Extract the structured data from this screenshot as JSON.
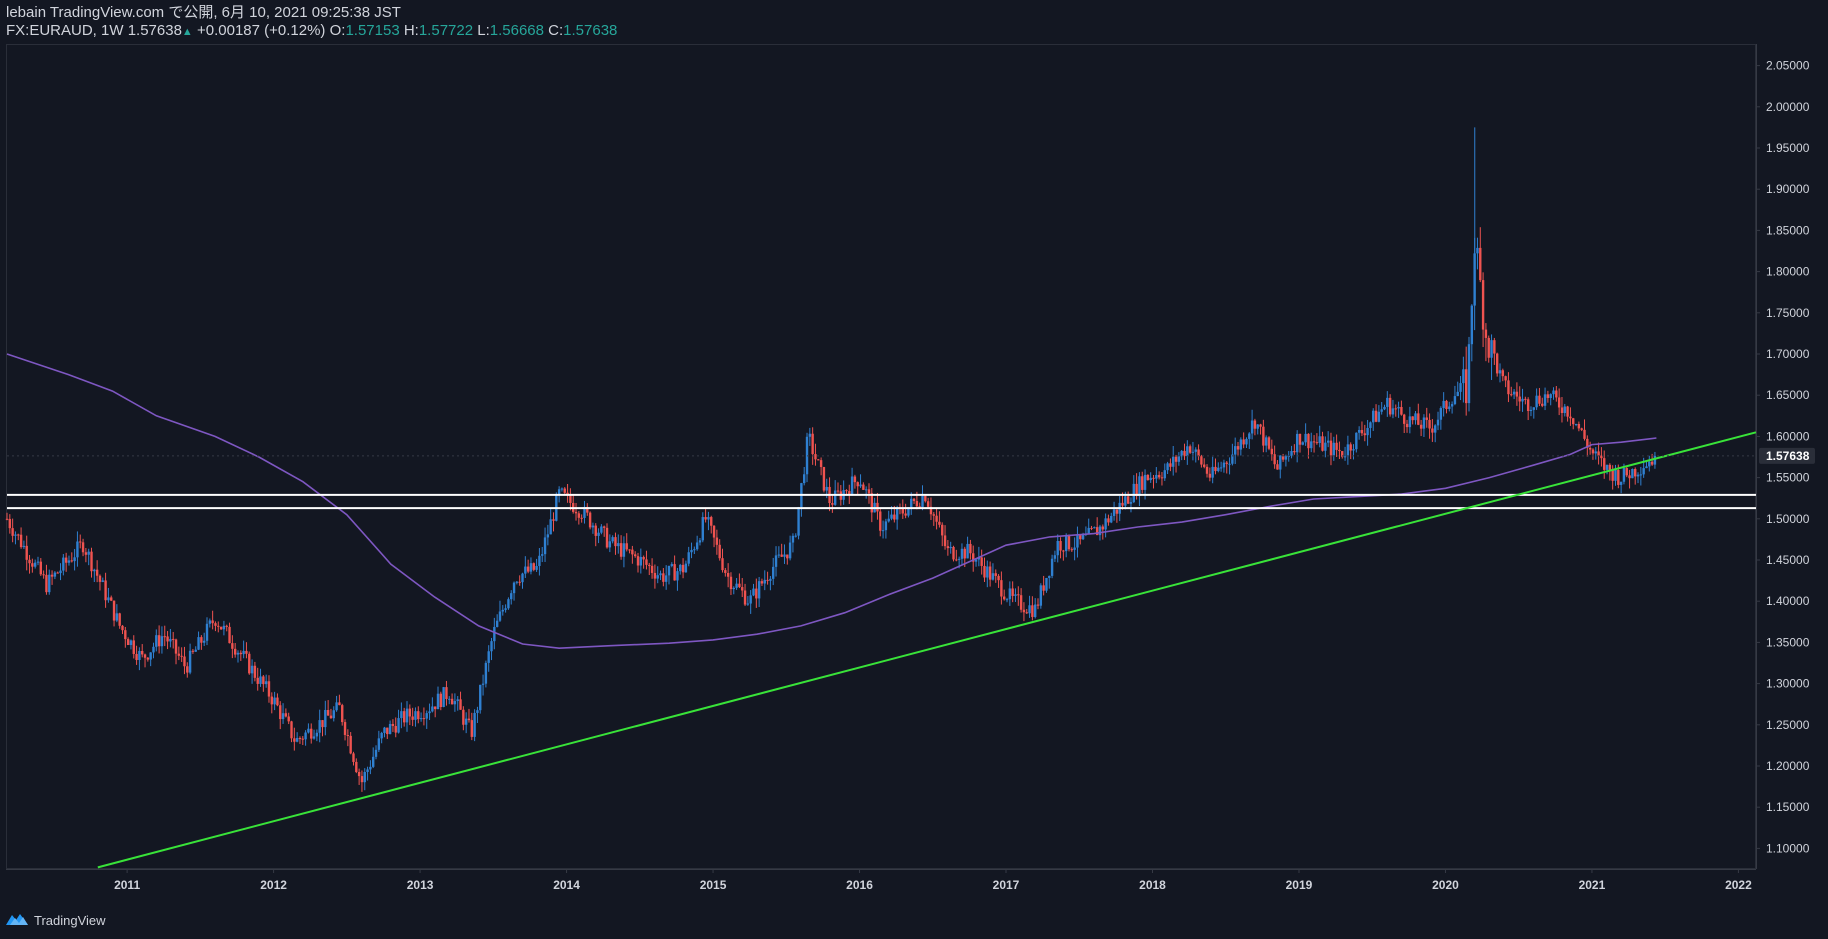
{
  "header": {
    "publisher": "lebain TradingView.com で公開, 6月 10, 2021 09:25:38 JST",
    "symbol": "FX:EURAUD, 1W",
    "last": "1.57638",
    "change_arrow": "▲",
    "change": "+0.00187 (+0.12%)",
    "o_label": "O:",
    "o_value": "1.57153",
    "h_label": "H:",
    "h_value": "1.57722",
    "l_label": "L:",
    "l_value": "1.56668",
    "c_label": "C:",
    "c_value": "1.57638"
  },
  "footer": {
    "brand": "TradingView"
  },
  "colors": {
    "background": "#131722",
    "up": "#2f80d1",
    "down": "#ef5350",
    "ma": "#7e57c2",
    "trendline": "#39e339",
    "support": "#ffffff",
    "axis_text": "#d1d4dc",
    "price_tag_bg": "#2a2e39"
  },
  "chart_data": {
    "type": "candlestick",
    "title": "EURAUD Weekly",
    "symbol": "FX:EURAUD",
    "interval": "1W",
    "x_range": [
      2010.18,
      2022.12
    ],
    "y_range": [
      1.075,
      2.075
    ],
    "x_tick_labels": [
      "2011",
      "2012",
      "2013",
      "2014",
      "2015",
      "2016",
      "2017",
      "2018",
      "2019",
      "2020",
      "2021",
      "2022"
    ],
    "y_tick_labels": [
      "2.05000",
      "2.00000",
      "1.95000",
      "1.90000",
      "1.85000",
      "1.80000",
      "1.75000",
      "1.70000",
      "1.65000",
      "1.60000",
      "1.55000",
      "1.50000",
      "1.45000",
      "1.40000",
      "1.35000",
      "1.30000",
      "1.25000",
      "1.20000",
      "1.15000",
      "1.10000"
    ],
    "last_price_label": "1.57638",
    "last_price": 1.57638,
    "price_path": [
      [
        2010.18,
        1.5
      ],
      [
        2010.45,
        1.42
      ],
      [
        2010.7,
        1.47
      ],
      [
        2010.95,
        1.37
      ],
      [
        2011.1,
        1.33
      ],
      [
        2011.25,
        1.36
      ],
      [
        2011.4,
        1.32
      ],
      [
        2011.6,
        1.38
      ],
      [
        2011.8,
        1.33
      ],
      [
        2012.0,
        1.28
      ],
      [
        2012.15,
        1.23
      ],
      [
        2012.3,
        1.25
      ],
      [
        2012.45,
        1.27
      ],
      [
        2012.6,
        1.18
      ],
      [
        2012.75,
        1.24
      ],
      [
        2012.9,
        1.26
      ],
      [
        2013.05,
        1.27
      ],
      [
        2013.2,
        1.29
      ],
      [
        2013.35,
        1.24
      ],
      [
        2013.5,
        1.36
      ],
      [
        2013.65,
        1.43
      ],
      [
        2013.8,
        1.44
      ],
      [
        2013.95,
        1.53
      ],
      [
        2014.1,
        1.51
      ],
      [
        2014.3,
        1.47
      ],
      [
        2014.5,
        1.45
      ],
      [
        2014.65,
        1.43
      ],
      [
        2014.8,
        1.44
      ],
      [
        2014.95,
        1.5
      ],
      [
        2015.1,
        1.43
      ],
      [
        2015.25,
        1.4
      ],
      [
        2015.4,
        1.44
      ],
      [
        2015.55,
        1.47
      ],
      [
        2015.65,
        1.6
      ],
      [
        2015.8,
        1.52
      ],
      [
        2016.0,
        1.55
      ],
      [
        2016.15,
        1.49
      ],
      [
        2016.3,
        1.51
      ],
      [
        2016.45,
        1.53
      ],
      [
        2016.6,
        1.46
      ],
      [
        2016.75,
        1.46
      ],
      [
        2016.9,
        1.43
      ],
      [
        2017.05,
        1.4
      ],
      [
        2017.2,
        1.39
      ],
      [
        2017.35,
        1.47
      ],
      [
        2017.5,
        1.47
      ],
      [
        2017.65,
        1.49
      ],
      [
        2017.8,
        1.52
      ],
      [
        2017.95,
        1.55
      ],
      [
        2018.1,
        1.56
      ],
      [
        2018.25,
        1.59
      ],
      [
        2018.4,
        1.55
      ],
      [
        2018.55,
        1.58
      ],
      [
        2018.7,
        1.62
      ],
      [
        2018.85,
        1.56
      ],
      [
        2019.0,
        1.6
      ],
      [
        2019.15,
        1.59
      ],
      [
        2019.3,
        1.58
      ],
      [
        2019.45,
        1.61
      ],
      [
        2019.6,
        1.64
      ],
      [
        2019.75,
        1.62
      ],
      [
        2019.9,
        1.61
      ],
      [
        2020.05,
        1.65
      ],
      [
        2020.15,
        1.66
      ],
      [
        2020.2,
        1.84
      ],
      [
        2020.28,
        1.72
      ],
      [
        2020.4,
        1.66
      ],
      [
        2020.55,
        1.64
      ],
      [
        2020.7,
        1.65
      ],
      [
        2020.85,
        1.63
      ],
      [
        2021.0,
        1.58
      ],
      [
        2021.1,
        1.56
      ],
      [
        2021.2,
        1.55
      ],
      [
        2021.3,
        1.56
      ],
      [
        2021.44,
        1.57638
      ]
    ],
    "indicators": [
      {
        "name": "Moving Average",
        "color": "#7e57c2",
        "points": [
          [
            2010.18,
            1.7
          ],
          [
            2010.6,
            1.675
          ],
          [
            2010.9,
            1.655
          ],
          [
            2011.2,
            1.625
          ],
          [
            2011.6,
            1.6
          ],
          [
            2011.9,
            1.575
          ],
          [
            2012.2,
            1.545
          ],
          [
            2012.5,
            1.505
          ],
          [
            2012.8,
            1.445
          ],
          [
            2013.1,
            1.405
          ],
          [
            2013.4,
            1.37
          ],
          [
            2013.7,
            1.348
          ],
          [
            2013.95,
            1.343
          ],
          [
            2014.3,
            1.346
          ],
          [
            2014.7,
            1.349
          ],
          [
            2015.0,
            1.353
          ],
          [
            2015.3,
            1.36
          ],
          [
            2015.6,
            1.37
          ],
          [
            2015.9,
            1.386
          ],
          [
            2016.2,
            1.408
          ],
          [
            2016.5,
            1.428
          ],
          [
            2016.8,
            1.452
          ],
          [
            2017.0,
            1.468
          ],
          [
            2017.3,
            1.478
          ],
          [
            2017.6,
            1.482
          ],
          [
            2017.9,
            1.49
          ],
          [
            2018.2,
            1.496
          ],
          [
            2018.5,
            1.505
          ],
          [
            2018.8,
            1.515
          ],
          [
            2019.1,
            1.524
          ],
          [
            2019.4,
            1.527
          ],
          [
            2019.7,
            1.53
          ],
          [
            2020.0,
            1.537
          ],
          [
            2020.3,
            1.55
          ],
          [
            2020.6,
            1.565
          ],
          [
            2020.85,
            1.578
          ],
          [
            2021.0,
            1.59
          ],
          [
            2021.2,
            1.593
          ],
          [
            2021.44,
            1.598
          ]
        ]
      }
    ],
    "trendlines": [
      {
        "name": "rising support",
        "color": "#39e339",
        "from": [
          2010.8,
          1.077
        ],
        "to": [
          2022.12,
          1.605
        ]
      }
    ],
    "horizontal_levels": [
      {
        "name": "resistance zone top",
        "price": 1.529,
        "color": "#ffffff"
      },
      {
        "name": "resistance zone bottom",
        "price": 1.513,
        "color": "#ffffff"
      }
    ],
    "annotations": [
      {
        "name": "COVID spike high",
        "date": 2020.2,
        "price": 1.975
      }
    ],
    "grid": false,
    "legend": "none"
  }
}
